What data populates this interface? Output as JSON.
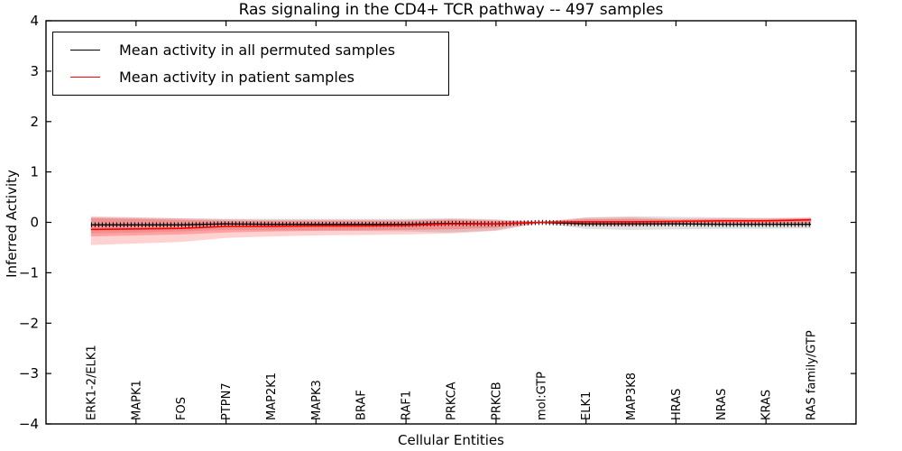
{
  "chart_data": {
    "type": "line",
    "title": "Ras signaling in the CD4+ TCR pathway -- 497 samples",
    "xlabel": "Cellular Entities",
    "ylabel": "Inferred Activity",
    "ylim": [
      -4,
      4
    ],
    "yticks": [
      -4,
      -3,
      -2,
      -1,
      0,
      1,
      2,
      3,
      4
    ],
    "xlim": [
      0,
      18
    ],
    "xticks": [
      2,
      4,
      6,
      8,
      10,
      12,
      14,
      16
    ],
    "grid": false,
    "legend_position": "upper left",
    "categories": [
      "ERK1-2/ELK1",
      "MAPK1",
      "FOS",
      "PTPN7",
      "MAP2K1",
      "MAPK3",
      "BRAF",
      "RAF1",
      "PRKCA",
      "PRKCB",
      "mol:GTP",
      "ELK1",
      "MAP3K8",
      "HRAS",
      "NRAS",
      "KRAS",
      "RAS family/GTP"
    ],
    "series": [
      {
        "name": "Mean activity in all permuted samples",
        "color": "#000000",
        "style": "solid-with-vertical-tick-markers",
        "values": [
          -0.05,
          -0.05,
          -0.05,
          -0.03,
          -0.04,
          -0.04,
          -0.04,
          -0.04,
          -0.02,
          -0.03,
          0.0,
          -0.03,
          -0.03,
          -0.03,
          -0.04,
          -0.04,
          -0.04
        ],
        "band": {
          "color": "#999999",
          "opacity": 0.3,
          "upper": [
            0.1,
            0.09,
            0.08,
            0.07,
            0.07,
            0.07,
            0.07,
            0.07,
            0.08,
            0.06,
            0.01,
            0.1,
            0.12,
            0.11,
            0.1,
            0.09,
            0.08
          ],
          "lower": [
            -0.22,
            -0.2,
            -0.18,
            -0.15,
            -0.16,
            -0.16,
            -0.17,
            -0.18,
            -0.2,
            -0.16,
            -0.01,
            -0.13,
            -0.15,
            -0.14,
            -0.13,
            -0.13,
            -0.12
          ]
        }
      },
      {
        "name": "Mean activity in patient samples",
        "color": "#ff0000",
        "style": "solid",
        "values": [
          -0.14,
          -0.13,
          -0.12,
          -0.08,
          -0.08,
          -0.07,
          -0.07,
          -0.06,
          -0.03,
          -0.03,
          0.0,
          0.01,
          0.01,
          0.02,
          0.03,
          0.03,
          0.05
        ],
        "bands": [
          {
            "color": "#ff3333",
            "opacity": 0.22,
            "upper": [
              0.12,
              0.1,
              0.08,
              0.06,
              0.05,
              0.05,
              0.05,
              0.05,
              0.07,
              0.05,
              0.01,
              0.09,
              0.1,
              0.07,
              0.08,
              0.08,
              0.1
            ],
            "lower": [
              -0.45,
              -0.42,
              -0.39,
              -0.31,
              -0.28,
              -0.26,
              -0.25,
              -0.24,
              -0.22,
              -0.17,
              -0.01,
              -0.07,
              -0.08,
              -0.05,
              -0.04,
              -0.04,
              -0.03
            ]
          },
          {
            "color": "#ff3333",
            "opacity": 0.3,
            "upper": [
              0.08,
              0.07,
              0.05,
              0.03,
              0.03,
              0.03,
              0.03,
              0.03,
              0.05,
              0.03,
              0.01,
              0.06,
              0.07,
              0.05,
              0.06,
              0.06,
              0.08
            ],
            "lower": [
              -0.28,
              -0.26,
              -0.24,
              -0.2,
              -0.18,
              -0.17,
              -0.16,
              -0.15,
              -0.14,
              -0.11,
              -0.01,
              -0.04,
              -0.05,
              -0.02,
              -0.02,
              -0.02,
              -0.01
            ]
          }
        ]
      }
    ]
  }
}
